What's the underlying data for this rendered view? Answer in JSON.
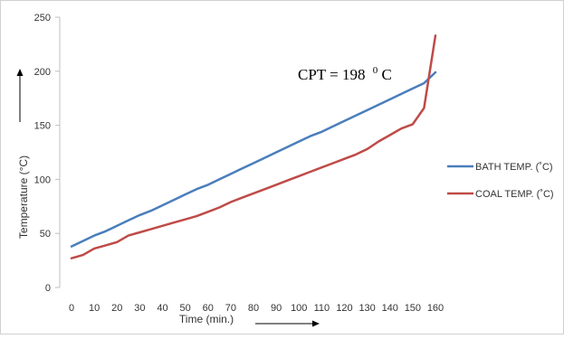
{
  "chart_data": {
    "type": "line",
    "xlabel": "Time (min.)",
    "ylabel": "Temperature (°C)",
    "xlim": [
      0,
      160
    ],
    "ylim": [
      0,
      250
    ],
    "x_ticks": [
      "0",
      "10",
      "20",
      "30",
      "40",
      "50",
      "60",
      "70",
      "80",
      "90",
      "100",
      "110",
      "120",
      "130",
      "140",
      "150",
      "160"
    ],
    "y_ticks": [
      "0",
      "50",
      "100",
      "150",
      "200",
      "250"
    ],
    "grid": false,
    "legend_position": "right",
    "annotation": {
      "main": "CPT = 198",
      "sup": "0",
      "unit": "C"
    },
    "series": [
      {
        "name": "BATH TEMP. (˚C)",
        "color": "#4A7EBB",
        "x": [
          0,
          5,
          10,
          15,
          20,
          25,
          30,
          35,
          40,
          45,
          50,
          55,
          60,
          65,
          70,
          75,
          80,
          85,
          90,
          95,
          100,
          105,
          110,
          115,
          120,
          125,
          130,
          135,
          140,
          145,
          150,
          155,
          160
        ],
        "y": [
          38,
          43,
          48,
          52,
          57,
          62,
          67,
          71,
          76,
          81,
          86,
          91,
          95,
          100,
          105,
          110,
          115,
          120,
          125,
          130,
          135,
          140,
          144,
          149,
          154,
          159,
          164,
          169,
          174,
          179,
          184,
          189,
          199
        ]
      },
      {
        "name": "COAL TEMP. (˚C)",
        "color": "#BE4B48",
        "x": [
          0,
          5,
          10,
          15,
          20,
          25,
          30,
          35,
          40,
          45,
          50,
          55,
          60,
          65,
          70,
          75,
          80,
          85,
          90,
          95,
          100,
          105,
          110,
          115,
          120,
          125,
          130,
          135,
          140,
          145,
          150,
          155,
          160
        ],
        "y": [
          27,
          30,
          36,
          39,
          42,
          48,
          51,
          54,
          57,
          60,
          63,
          66,
          70,
          74,
          79,
          83,
          87,
          91,
          95,
          99,
          103,
          107,
          111,
          115,
          119,
          123,
          128,
          135,
          141,
          147,
          151,
          166,
          233
        ]
      }
    ]
  }
}
